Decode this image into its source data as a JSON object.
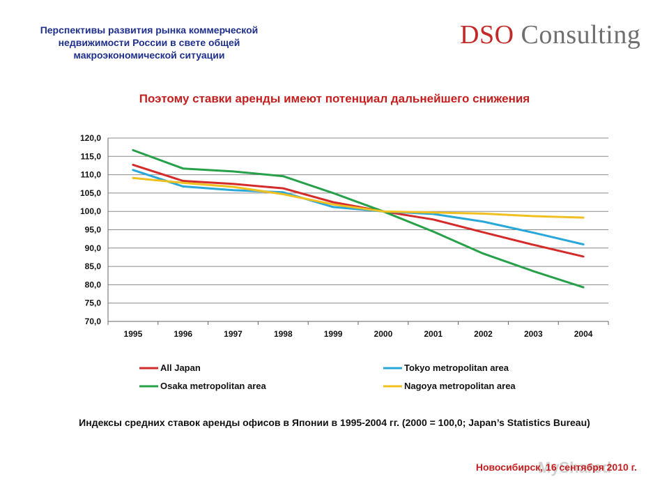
{
  "header": {
    "title_lines": [
      "Перспективы развития рынка коммерческой",
      "недвижимости России в свете общей",
      "макроэкономической ситуации"
    ],
    "logo_part1": "DSO",
    "logo_part2": "Consulting"
  },
  "slide_title": "Поэтому ставки аренды имеют потенциал дальнейшего снижения",
  "caption": "Индексы средних ставок  аренды офисов в Японии в 1995-2004 гг. (2000 = 100,0; Japan’s Statistics Bureau)",
  "footer": {
    "date": "Новосибирск, 16 сентября 2010 г.",
    "watermark": "MyShared"
  },
  "chart_data": {
    "type": "line",
    "title": "",
    "xlabel": "",
    "ylabel": "",
    "categories": [
      "1995",
      "1996",
      "1997",
      "1998",
      "1999",
      "2000",
      "2001",
      "2002",
      "2003",
      "2004"
    ],
    "ylim": [
      70,
      120
    ],
    "yticks": [
      "120,0",
      "115,0",
      "110,0",
      "105,0",
      "100,0",
      "95,0",
      "90,0",
      "85,0",
      "80,0",
      "75,0",
      "70,0"
    ],
    "grid": true,
    "legend_position": "bottom",
    "series": [
      {
        "name": "All Japan",
        "color": "#d42a2a",
        "values": [
          112.7,
          108.3,
          107.5,
          106.3,
          102.5,
          100.0,
          97.8,
          94.3,
          90.9,
          87.7
        ]
      },
      {
        "name": "Tokyo metropolitan area",
        "color": "#2aa7d9",
        "values": [
          111.3,
          106.8,
          105.8,
          105.2,
          101.2,
          100.0,
          99.3,
          97.2,
          94.2,
          91.0
        ]
      },
      {
        "name": "Osaka metropolitan area",
        "color": "#27a04a",
        "values": [
          116.7,
          111.7,
          110.9,
          109.6,
          105.0,
          100.0,
          94.5,
          88.5,
          83.7,
          79.3
        ]
      },
      {
        "name": "Nagoya metropolitan area",
        "color": "#f0c020",
        "values": [
          109.1,
          107.8,
          106.7,
          104.7,
          101.9,
          100.0,
          99.7,
          99.4,
          98.7,
          98.3
        ]
      }
    ]
  }
}
